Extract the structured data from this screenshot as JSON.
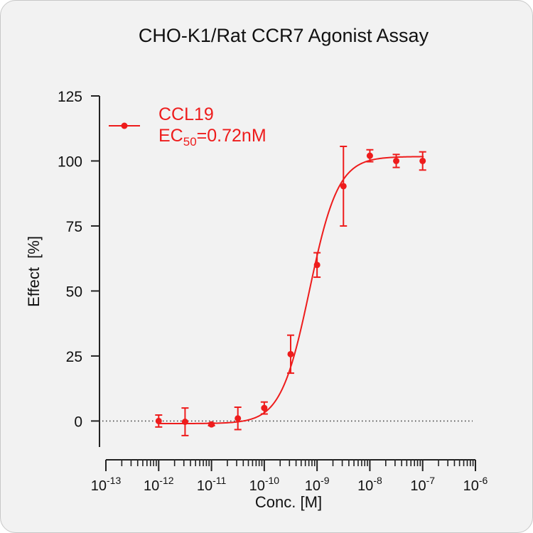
{
  "chart_data": {
    "type": "scatter",
    "title": "CHO-K1/Rat CCR7 Agonist Assay",
    "xlabel": "Conc. [M]",
    "ylabel": "Effect  [%]",
    "x_scale": "log",
    "xlim": [
      1e-13,
      1e-06
    ],
    "ylim": [
      -10,
      125
    ],
    "x_ticks": [
      {
        "base": "10",
        "exp": "-13"
      },
      {
        "base": "10",
        "exp": "-12"
      },
      {
        "base": "10",
        "exp": "-11"
      },
      {
        "base": "10",
        "exp": "-10"
      },
      {
        "base": "10",
        "exp": "-9"
      },
      {
        "base": "10",
        "exp": "-8"
      },
      {
        "base": "10",
        "exp": "-7"
      },
      {
        "base": "10",
        "exp": "-6"
      }
    ],
    "y_ticks": [
      "0",
      "25",
      "50",
      "75",
      "100",
      "125"
    ],
    "reference_line": {
      "y": 0,
      "style": "dotted"
    },
    "series": [
      {
        "name": "CCL19",
        "color": "#ee1c1c",
        "x": [
          1e-12,
          3.16e-12,
          1e-11,
          3.16e-11,
          1e-10,
          3.16e-10,
          1e-09,
          3.16e-09,
          1e-08,
          3.16e-08,
          1e-07
        ],
        "y": [
          0,
          -0.3,
          -1.3,
          1,
          5,
          25.7,
          60,
          90.3,
          102,
          100,
          100
        ],
        "error": [
          2.3,
          5.3,
          0.5,
          4.3,
          2.3,
          7.3,
          4.7,
          15.3,
          2.3,
          2.5,
          3.5
        ],
        "fit": {
          "model": "4PL",
          "bottom": -1,
          "top": 101.7,
          "ec50": 7.2e-10,
          "hill": 1.6
        }
      }
    ],
    "legend": {
      "position": "top-left",
      "series_label": "CCL19",
      "ec50_prefix": "EC",
      "ec50_subscript": "50",
      "ec50_value": "=0.72nM"
    }
  }
}
